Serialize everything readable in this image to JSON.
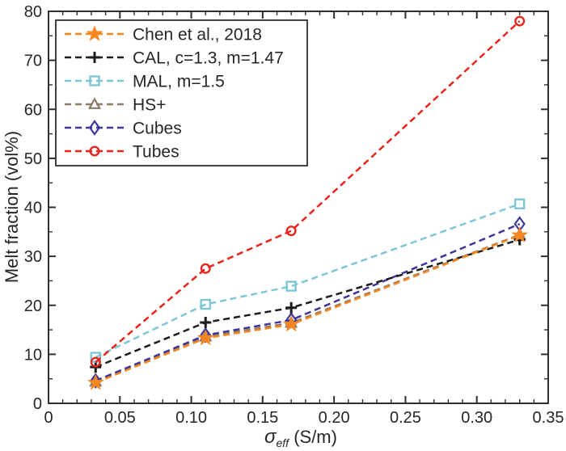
{
  "figure": {
    "background": "#ffffff",
    "text_color": "#262626",
    "axis_color": "#2e2e2e"
  },
  "chart_data": {
    "type": "line",
    "title": "",
    "ylabel": "Melt fraction (vol%)",
    "xlabel": {
      "symbol": "σ",
      "subscript": "eff",
      "unit": " (S/m)"
    },
    "xlim": [
      0,
      0.35
    ],
    "ylim": [
      0,
      80
    ],
    "x_major_ticks": [
      0,
      0.05,
      0.1,
      0.15,
      0.2,
      0.25,
      0.3,
      0.35
    ],
    "x_tick_labels": [
      "0",
      "0.05",
      "0.10",
      "0.15",
      "0.20",
      "0.25",
      "0.30",
      "0.35"
    ],
    "x_minor_step": 0.01,
    "y_major_ticks": [
      0,
      10,
      20,
      30,
      40,
      50,
      60,
      70,
      80
    ],
    "y_tick_labels": [
      "0",
      "10",
      "20",
      "30",
      "40",
      "50",
      "60",
      "70",
      "80"
    ],
    "y_minor_step": 5,
    "grid": false,
    "legend_position": "top-left",
    "line_style": "dashed",
    "x": [
      0.033,
      0.11,
      0.17,
      0.33
    ],
    "series": [
      {
        "name": "Chen et al., 2018",
        "marker": "star",
        "color": "#F6861F",
        "values": [
          4.2,
          13.3,
          16.1,
          34.3
        ]
      },
      {
        "name": "CAL, c=1.3, m=1.47",
        "marker": "plus",
        "color": "#1C1C1C",
        "values": [
          7.4,
          16.5,
          19.5,
          33.4
        ]
      },
      {
        "name": "MAL, m=1.5",
        "marker": "square",
        "color": "#7EC6D6",
        "values": [
          9.4,
          20.2,
          23.9,
          40.7
        ]
      },
      {
        "name": "HS+",
        "marker": "triangle",
        "color": "#8B7A68",
        "values": [
          4.4,
          13.6,
          16.4,
          34.4
        ]
      },
      {
        "name": "Cubes",
        "marker": "diamond",
        "color": "#3E3798",
        "values": [
          4.6,
          13.9,
          17.0,
          36.6
        ]
      },
      {
        "name": "Tubes",
        "marker": "circle",
        "color": "#E8251C",
        "values": [
          8.4,
          27.5,
          35.2,
          78.0
        ]
      }
    ]
  }
}
